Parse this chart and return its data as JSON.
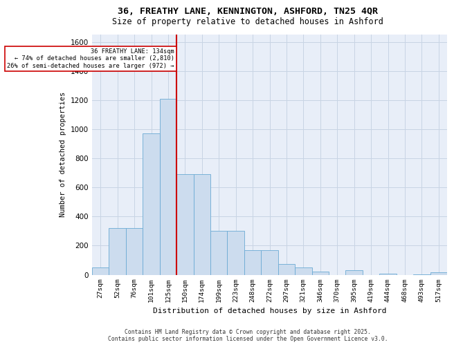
{
  "title_line1": "36, FREATHY LANE, KENNINGTON, ASHFORD, TN25 4QR",
  "title_line2": "Size of property relative to detached houses in Ashford",
  "xlabel": "Distribution of detached houses by size in Ashford",
  "ylabel": "Number of detached properties",
  "categories": [
    "27sqm",
    "52sqm",
    "76sqm",
    "101sqm",
    "125sqm",
    "150sqm",
    "174sqm",
    "199sqm",
    "223sqm",
    "248sqm",
    "272sqm",
    "297sqm",
    "321sqm",
    "346sqm",
    "370sqm",
    "395sqm",
    "419sqm",
    "444sqm",
    "468sqm",
    "493sqm",
    "517sqm"
  ],
  "values": [
    50,
    320,
    320,
    970,
    1210,
    690,
    690,
    300,
    300,
    170,
    170,
    75,
    50,
    20,
    0,
    30,
    0,
    5,
    0,
    2,
    15
  ],
  "bar_color": "#ccdcee",
  "bar_edge_color": "#6aaad4",
  "vline_color": "#cc0000",
  "grid_color": "#c8d4e4",
  "background_color": "#e8eef8",
  "ylim": [
    0,
    1650
  ],
  "yticks": [
    0,
    200,
    400,
    600,
    800,
    1000,
    1200,
    1400,
    1600
  ],
  "property_line_label": "36 FREATHY LANE: 134sqm",
  "annotation_line2": "← 74% of detached houses are smaller (2,810)",
  "annotation_line3": "26% of semi-detached houses are larger (972) →",
  "footer_line1": "Contains HM Land Registry data © Crown copyright and database right 2025.",
  "footer_line2": "Contains public sector information licensed under the Open Government Licence v3.0."
}
